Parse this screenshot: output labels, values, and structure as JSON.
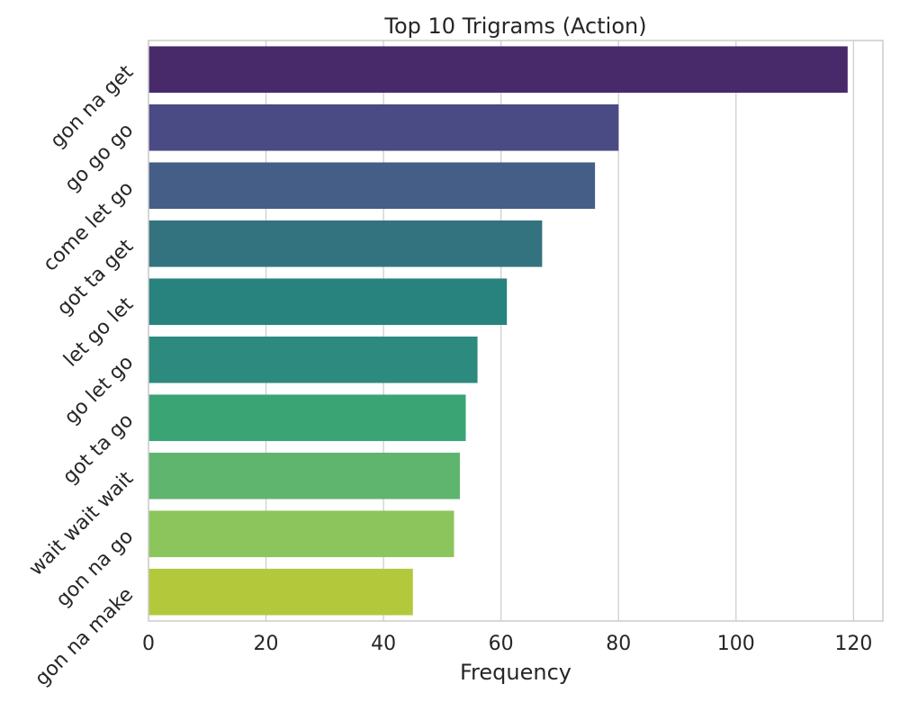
{
  "chart_data": {
    "type": "bar",
    "orientation": "horizontal",
    "title": "Top 10 Trigrams (Action)",
    "xlabel": "Frequency",
    "ylabel": "",
    "categories": [
      "gon na get",
      "go go go",
      "come let go",
      "got ta get",
      "let go let",
      "go let go",
      "got ta go",
      "wait wait wait",
      "gon na go",
      "gon na make"
    ],
    "values": [
      119,
      80,
      76,
      67,
      61,
      56,
      54,
      53,
      52,
      45
    ],
    "colors": [
      "#482a6b",
      "#4a4a84",
      "#445e88",
      "#33737f",
      "#28827e",
      "#2d8a7e",
      "#3ba475",
      "#5fb56d",
      "#8bc55b",
      "#b3c93b"
    ],
    "xlim": [
      0,
      125
    ],
    "xticks": [
      0,
      20,
      40,
      60,
      80,
      100,
      120
    ],
    "grid": "vertical",
    "palette": "viridis"
  }
}
